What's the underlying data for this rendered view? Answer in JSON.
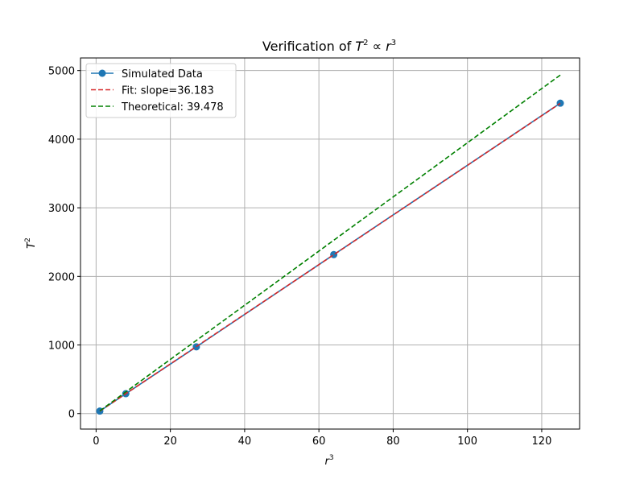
{
  "chart_data": {
    "type": "line",
    "title": "Verification of T² ∝ r³",
    "title_parts": {
      "prefix": "Verification of ",
      "a": "T",
      "a_exp": "2",
      "rel": " ∝ ",
      "b": "r",
      "b_exp": "3"
    },
    "xlabel": {
      "base": "r",
      "exp": "3"
    },
    "ylabel": {
      "base": "T",
      "exp": "2"
    },
    "xlim": [
      -4.2,
      130.2
    ],
    "ylim": [
      -226,
      5184
    ],
    "xticks": [
      0,
      20,
      40,
      60,
      80,
      100,
      120
    ],
    "yticks": [
      0,
      1000,
      2000,
      3000,
      4000,
      5000
    ],
    "grid": true,
    "legend_position": "upper-left",
    "series": [
      {
        "name": "Simulated Data",
        "style": "solid-with-markers",
        "color": "#1f77b4",
        "x": [
          1,
          8,
          27,
          64,
          125
        ],
        "y": [
          36,
          290,
          973,
          2317,
          4525
        ]
      },
      {
        "name": "Fit: slope=36.183",
        "style": "dashed",
        "color": "#d62728",
        "x": [
          1,
          125
        ],
        "y": [
          36.2,
          4522.9
        ]
      },
      {
        "name": "Theoretical: 39.478",
        "style": "dashed",
        "color": "#008000",
        "x": [
          1,
          125
        ],
        "y": [
          39.5,
          4934.8
        ]
      }
    ]
  }
}
